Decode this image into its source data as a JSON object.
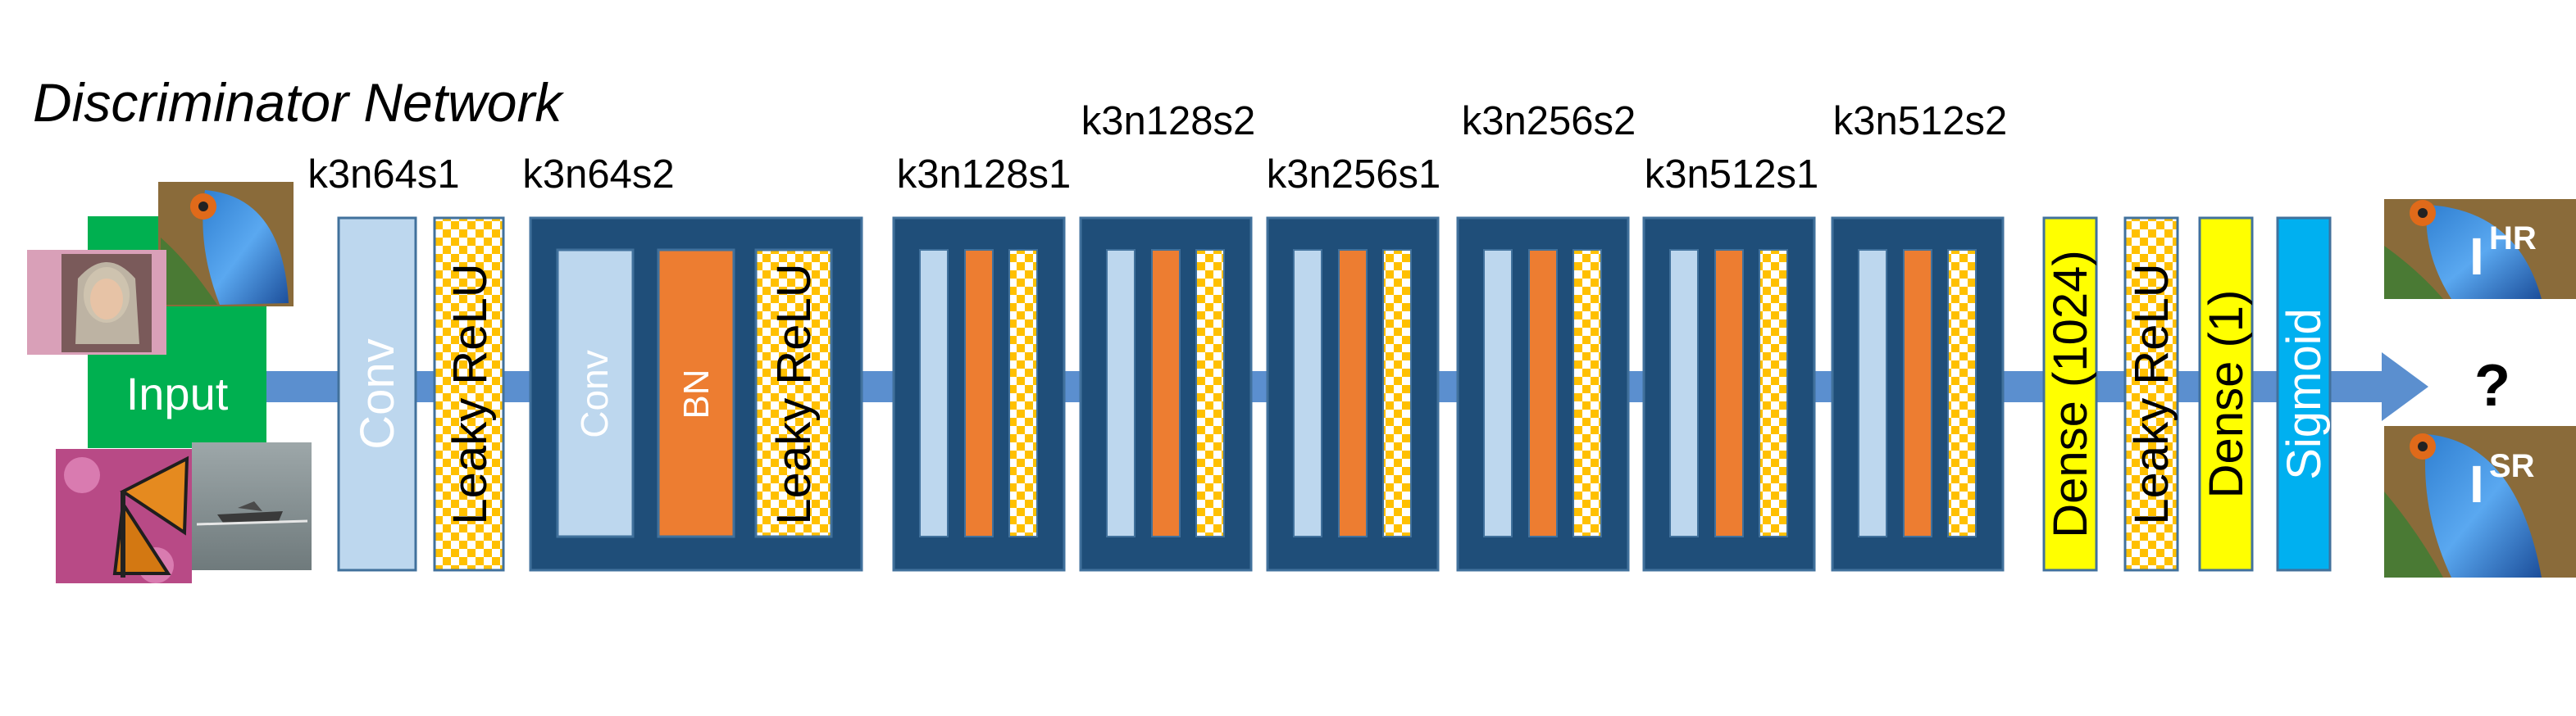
{
  "title": "Discriminator Network",
  "input": {
    "label": "Input"
  },
  "first_block": {
    "label": "k3n64s1",
    "conv": "Conv",
    "act": "Leaky ReLU"
  },
  "second_block": {
    "label": "k3n64s2",
    "conv": "Conv",
    "bn": "BN",
    "act": "Leaky ReLU"
  },
  "repeated_blocks": [
    {
      "label": "k3n128s1"
    },
    {
      "label": "k3n128s2"
    },
    {
      "label": "k3n256s1"
    },
    {
      "label": "k3n256s2"
    },
    {
      "label": "k3n512s1"
    },
    {
      "label": "k3n512s2"
    }
  ],
  "head": {
    "dense1": "Dense (1024)",
    "act": "Leaky ReLU",
    "dense2": "Dense (1)",
    "sigmoid": "Sigmoid"
  },
  "output": {
    "hr_label": "I",
    "hr_sup": "HR",
    "question": "?",
    "sr_label": "I",
    "sr_sup": "SR"
  },
  "colors": {
    "arrow": "#5b8fcf",
    "dark_block": "#1f4e79",
    "conv": "#bdd7ee",
    "bn": "#ed7d31",
    "act_yellow": "#ffc000",
    "dense": "#ffff00",
    "sigmoid": "#00b0f0",
    "input_green": "#00b050"
  }
}
